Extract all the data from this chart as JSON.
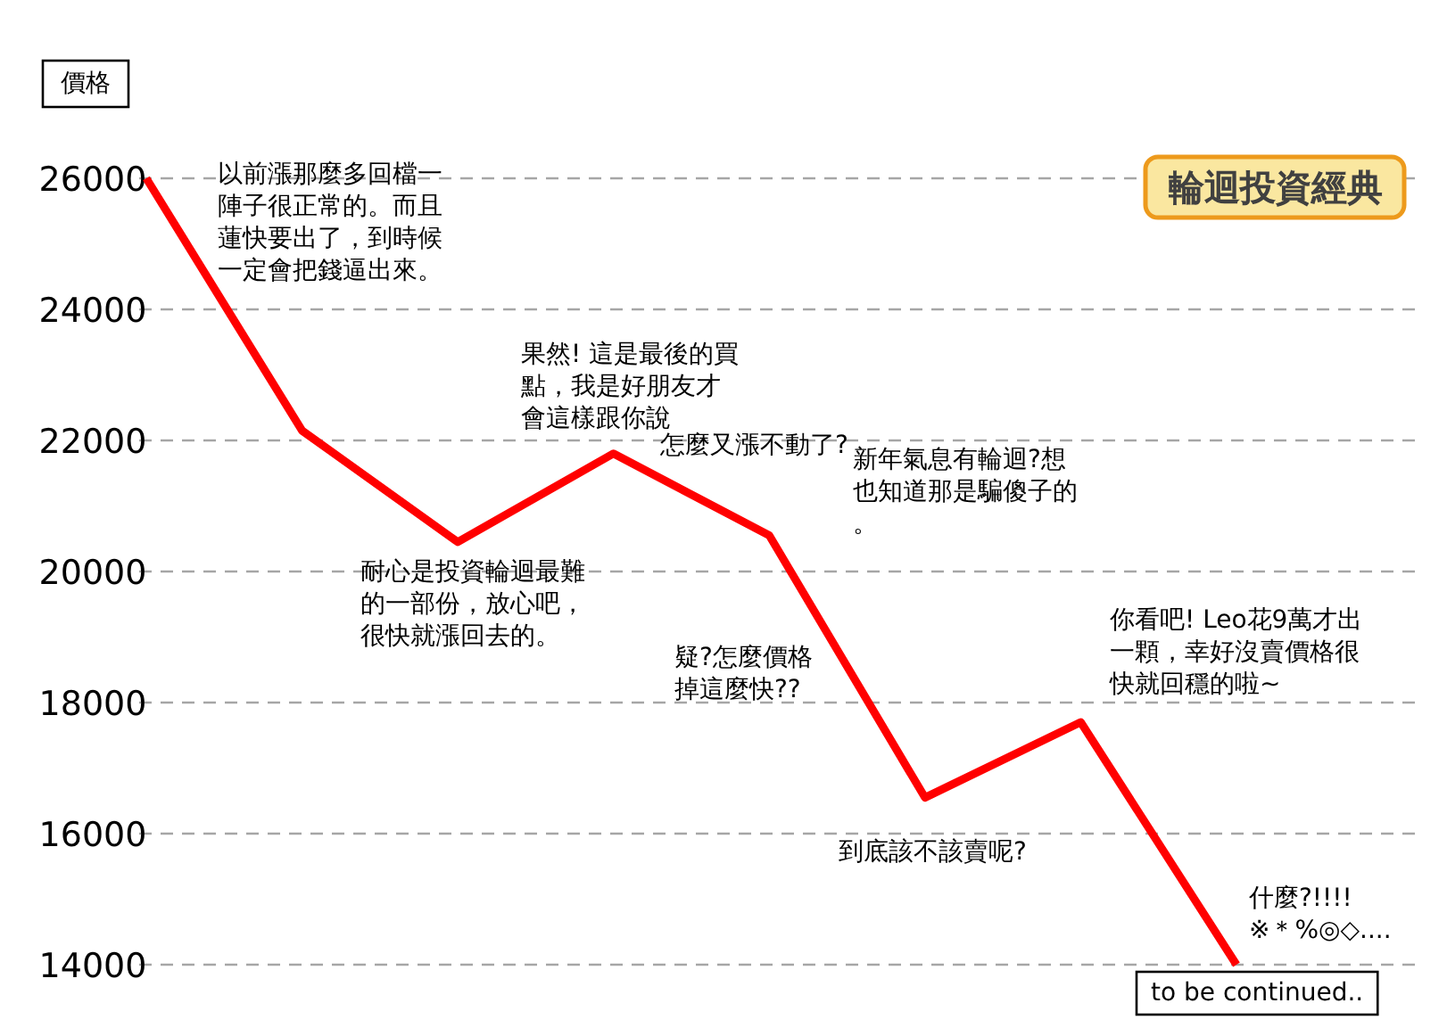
{
  "chart_data": {
    "type": "line",
    "title": "輪迴投資經典",
    "ylabel": "價格",
    "categories": [
      null,
      null,
      null,
      null,
      null,
      null,
      null,
      null
    ],
    "series": [
      {
        "color": "#ff0000",
        "values": [
          26000,
          22150,
          20450,
          21800,
          20550,
          16550,
          17700,
          14000
        ]
      }
    ],
    "ylim": [
      14000,
      26000
    ],
    "yticks": [
      14000,
      16000,
      18000,
      20000,
      22000,
      24000,
      26000
    ],
    "grid": "y",
    "line_style": "solid",
    "marker": "none",
    "annotations": [
      "以前漲那麼多回檔一陣子很正常的。而且蓮快要出了，到時候一定會把錢逼出來。",
      "耐心是投資輪迴最難的一部份，放心吧，很快就漲回去的。",
      "果然! 這是最後的買點，我是好朋友才會這樣跟你說",
      "怎麼又漲不動了?",
      "新年氣息有輪迴?想也知道那是騙傻子的。",
      "疑?怎麼價格掉這麼快??",
      "到底該不該賣呢?",
      "你看吧! Leo花9萬才出一顆，幸好沒賣價格很快就回穩的啦~",
      "什麼?!!!!\n※＊%◎◇....",
      "to be continued.."
    ]
  }
}
